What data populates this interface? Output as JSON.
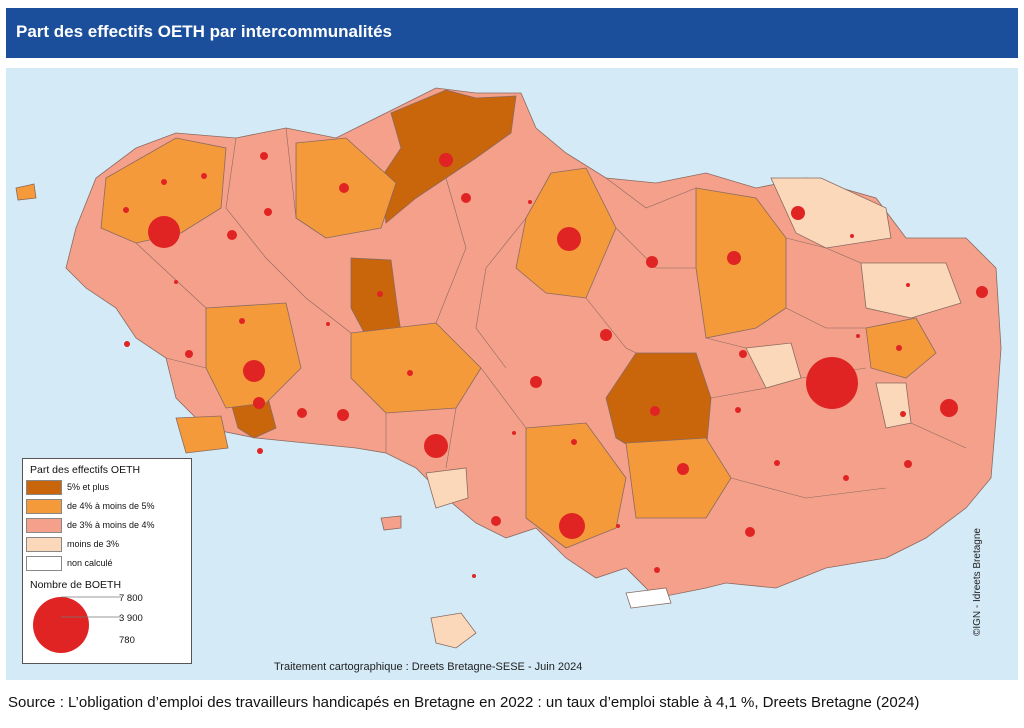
{
  "header": {
    "title": "Part des effectifs OETH par intercommunalités"
  },
  "colors": {
    "sea": "#d4eaf7",
    "class_5_plus": "#c9650a",
    "class_4_5": "#f59a3b",
    "class_3_4": "#f5a08a",
    "class_lt3": "#fbd8b9",
    "class_nc": "#ffffff",
    "bubble": "#e02424"
  },
  "legend": {
    "title": "Part des effectifs OETH",
    "classes": [
      {
        "label": "5% et plus",
        "color": "#c9650a"
      },
      {
        "label": "de 4% à moins de 5%",
        "color": "#f59a3b"
      },
      {
        "label": "de 3% à moins de 4%",
        "color": "#f5a08a"
      },
      {
        "label": "moins de 3%",
        "color": "#fbd8b9"
      },
      {
        "label": "non calculé",
        "color": "#ffffff"
      }
    ],
    "size_title": "Nombre de BOETH",
    "size_values": [
      "7 800",
      "3 900",
      "780"
    ]
  },
  "credits": {
    "bottom": "Traitement cartographique : Dreets Bretagne-SESE - Juin 2024",
    "right": "©IGN - Idreets Bretagne"
  },
  "source": "Source : L’obligation d’emploi des travailleurs handicapés en Bretagne en 2022 : un taux d’emploi stable à 4,1 %, Dreets Bretagne (2024)"
}
